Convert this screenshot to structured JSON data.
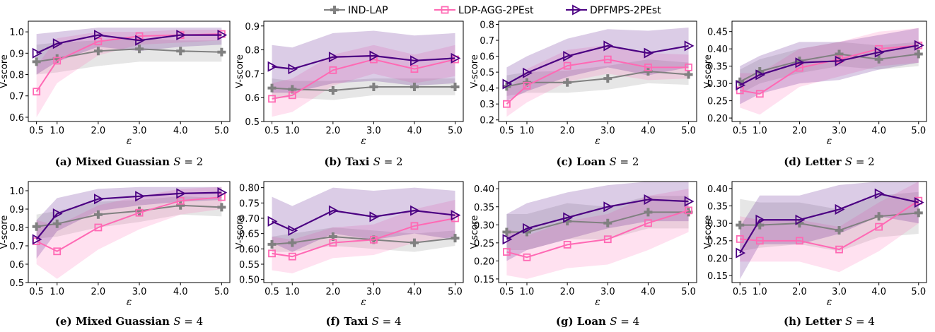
{
  "legend": {
    "entries": [
      {
        "label": "IND-LAP",
        "color": "#808080",
        "marker": "plus"
      },
      {
        "label": "LDP-AGG-2PEst",
        "color": "#ff69b4",
        "marker": "square"
      },
      {
        "label": "DPFMPS-2PEst",
        "color": "#4b0082",
        "marker": "triangle-right"
      }
    ]
  },
  "chart_data": [
    {
      "type": "line",
      "caption": {
        "tag": "(a) Mixed Guassian",
        "var": "S",
        "rest": " = 2"
      },
      "xlabel": "ε",
      "ylabel": "V-score",
      "x": [
        0.5,
        1.0,
        2.0,
        3.0,
        4.0,
        5.0
      ],
      "x_ticks": [
        "0.5",
        "1.0",
        "2.0",
        "3.0",
        "4.0",
        "5.0"
      ],
      "ylim": [
        0.58,
        1.05
      ],
      "y_ticks": [
        "0.6",
        "0.7",
        "0.8",
        "0.9",
        "1.0"
      ],
      "series": [
        {
          "name": "IND-LAP",
          "values": [
            0.86,
            0.875,
            0.91,
            0.92,
            0.91,
            0.905
          ],
          "lower": [
            0.8,
            0.81,
            0.84,
            0.86,
            0.86,
            0.86
          ],
          "upper": [
            0.94,
            0.95,
            0.96,
            0.97,
            0.96,
            0.96
          ]
        },
        {
          "name": "LDP-AGG-2PEst",
          "values": [
            0.72,
            0.865,
            0.955,
            0.98,
            0.985,
            0.99
          ],
          "lower": [
            0.6,
            0.76,
            0.89,
            0.94,
            0.95,
            0.96
          ],
          "upper": [
            0.84,
            0.97,
            1.0,
            1.0,
            1.01,
            1.01
          ]
        },
        {
          "name": "DPFMPS-2PEst",
          "values": [
            0.9,
            0.945,
            0.985,
            0.96,
            0.985,
            0.985
          ],
          "lower": [
            0.8,
            0.86,
            0.93,
            0.91,
            0.93,
            0.94
          ],
          "upper": [
            0.99,
            1.0,
            1.02,
            1.02,
            1.02,
            1.02
          ]
        }
      ]
    },
    {
      "type": "line",
      "caption": {
        "tag": "(b) Taxi",
        "var": "S",
        "rest": " = 2"
      },
      "xlabel": "ε",
      "ylabel": "V-score",
      "x": [
        0.5,
        1.0,
        2.0,
        3.0,
        4.0,
        5.0
      ],
      "x_ticks": [
        "0.5",
        "1.0",
        "2.0",
        "3.0",
        "4.0",
        "5.0"
      ],
      "ylim": [
        0.5,
        0.92
      ],
      "y_ticks": [
        "0.5",
        "0.6",
        "0.7",
        "0.8",
        "0.9"
      ],
      "series": [
        {
          "name": "IND-LAP",
          "values": [
            0.64,
            0.635,
            0.63,
            0.645,
            0.645,
            0.645
          ],
          "lower": [
            0.6,
            0.6,
            0.59,
            0.61,
            0.61,
            0.61
          ],
          "upper": [
            0.68,
            0.67,
            0.67,
            0.68,
            0.68,
            0.68
          ]
        },
        {
          "name": "LDP-AGG-2PEst",
          "values": [
            0.595,
            0.61,
            0.715,
            0.76,
            0.72,
            0.76
          ],
          "lower": [
            0.52,
            0.54,
            0.65,
            0.7,
            0.66,
            0.69
          ],
          "upper": [
            0.66,
            0.68,
            0.78,
            0.82,
            0.78,
            0.82
          ]
        },
        {
          "name": "DPFMPS-2PEst",
          "values": [
            0.73,
            0.72,
            0.77,
            0.775,
            0.755,
            0.765
          ],
          "lower": [
            0.62,
            0.62,
            0.66,
            0.67,
            0.65,
            0.66
          ],
          "upper": [
            0.82,
            0.81,
            0.87,
            0.88,
            0.86,
            0.87
          ]
        }
      ]
    },
    {
      "type": "line",
      "caption": {
        "tag": "(c) Loan",
        "var": "S",
        "rest": " = 2"
      },
      "xlabel": "ε",
      "ylabel": "V-score",
      "x": [
        0.5,
        1.0,
        2.0,
        3.0,
        4.0,
        5.0
      ],
      "x_ticks": [
        "0.5",
        "1.0",
        "2.0",
        "3.0",
        "4.0",
        "5.0"
      ],
      "ylim": [
        0.19,
        0.82
      ],
      "y_ticks": [
        "0.2",
        "0.3",
        "0.4",
        "0.5",
        "0.6",
        "0.7",
        "0.8"
      ],
      "series": [
        {
          "name": "IND-LAP",
          "values": [
            0.41,
            0.435,
            0.435,
            0.46,
            0.505,
            0.485
          ],
          "lower": [
            0.35,
            0.37,
            0.37,
            0.39,
            0.43,
            0.42
          ],
          "upper": [
            0.48,
            0.5,
            0.51,
            0.54,
            0.58,
            0.56
          ]
        },
        {
          "name": "LDP-AGG-2PEst",
          "values": [
            0.3,
            0.415,
            0.54,
            0.58,
            0.53,
            0.53
          ],
          "lower": [
            0.22,
            0.31,
            0.44,
            0.49,
            0.45,
            0.46
          ],
          "upper": [
            0.38,
            0.52,
            0.64,
            0.67,
            0.62,
            0.61
          ]
        },
        {
          "name": "DPFMPS-2PEst",
          "values": [
            0.425,
            0.495,
            0.6,
            0.665,
            0.62,
            0.665
          ],
          "lower": [
            0.32,
            0.38,
            0.47,
            0.53,
            0.48,
            0.53
          ],
          "upper": [
            0.53,
            0.6,
            0.71,
            0.77,
            0.76,
            0.78
          ]
        }
      ]
    },
    {
      "type": "line",
      "caption": {
        "tag": "(d) Letter",
        "var": "S",
        "rest": " = 2"
      },
      "xlabel": "ε",
      "ylabel": "V-score",
      "x": [
        0.5,
        1.0,
        2.0,
        3.0,
        4.0,
        5.0
      ],
      "x_ticks": [
        "0.5",
        "1.0",
        "2.0",
        "3.0",
        "4.0",
        "5.0"
      ],
      "ylim": [
        0.19,
        0.48
      ],
      "y_ticks": [
        "0.20",
        "0.25",
        "0.30",
        "0.35",
        "0.40",
        "0.45"
      ],
      "series": [
        {
          "name": "IND-LAP",
          "values": [
            0.305,
            0.335,
            0.365,
            0.385,
            0.37,
            0.385
          ],
          "lower": [
            0.27,
            0.3,
            0.33,
            0.35,
            0.34,
            0.35
          ],
          "upper": [
            0.34,
            0.37,
            0.4,
            0.42,
            0.41,
            0.42
          ]
        },
        {
          "name": "LDP-AGG-2PEst",
          "values": [
            0.28,
            0.27,
            0.345,
            0.37,
            0.4,
            0.41
          ],
          "lower": [
            0.23,
            0.21,
            0.29,
            0.32,
            0.35,
            0.36
          ],
          "upper": [
            0.33,
            0.33,
            0.4,
            0.42,
            0.45,
            0.46
          ]
        },
        {
          "name": "DPFMPS-2PEst",
          "values": [
            0.295,
            0.325,
            0.36,
            0.365,
            0.39,
            0.41
          ],
          "lower": [
            0.24,
            0.27,
            0.3,
            0.31,
            0.34,
            0.36
          ],
          "upper": [
            0.35,
            0.38,
            0.42,
            0.42,
            0.44,
            0.46
          ]
        }
      ]
    },
    {
      "type": "line",
      "caption": {
        "tag": "(e) Mixed Guassian",
        "var": "S",
        "rest": " = 4"
      },
      "xlabel": "ε",
      "ylabel": "V-score",
      "x": [
        0.5,
        1.0,
        2.0,
        3.0,
        4.0,
        5.0
      ],
      "x_ticks": [
        "0.5",
        "1.0",
        "2.0",
        "3.0",
        "4.0",
        "5.0"
      ],
      "ylim": [
        0.5,
        1.05
      ],
      "y_ticks": [
        "0.5",
        "0.6",
        "0.7",
        "0.8",
        "0.9",
        "1.0"
      ],
      "series": [
        {
          "name": "IND-LAP",
          "values": [
            0.805,
            0.82,
            0.87,
            0.89,
            0.92,
            0.91
          ],
          "lower": [
            0.74,
            0.75,
            0.8,
            0.83,
            0.87,
            0.86
          ],
          "upper": [
            0.87,
            0.89,
            0.94,
            0.95,
            0.97,
            0.96
          ]
        },
        {
          "name": "LDP-AGG-2PEst",
          "values": [
            0.725,
            0.67,
            0.8,
            0.88,
            0.945,
            0.965
          ],
          "lower": [
            0.6,
            0.52,
            0.68,
            0.79,
            0.87,
            0.9
          ],
          "upper": [
            0.84,
            0.81,
            0.92,
            0.97,
            1.01,
            1.02
          ]
        },
        {
          "name": "DPFMPS-2PEst",
          "values": [
            0.735,
            0.875,
            0.955,
            0.97,
            0.985,
            0.99
          ],
          "lower": [
            0.63,
            0.78,
            0.89,
            0.92,
            0.94,
            0.95
          ],
          "upper": [
            0.84,
            0.96,
            1.01,
            1.02,
            1.02,
            1.02
          ]
        }
      ]
    },
    {
      "type": "line",
      "caption": {
        "tag": "(f) Taxi",
        "var": "S",
        "rest": " = 4"
      },
      "xlabel": "ε",
      "ylabel": "V-score",
      "x": [
        0.5,
        1.0,
        2.0,
        3.0,
        4.0,
        5.0
      ],
      "x_ticks": [
        "0.5",
        "1.0",
        "2.0",
        "3.0",
        "4.0",
        "5.0"
      ],
      "ylim": [
        0.49,
        0.82
      ],
      "y_ticks": [
        "0.50",
        "0.55",
        "0.60",
        "0.65",
        "0.70",
        "0.75",
        "0.80"
      ],
      "series": [
        {
          "name": "IND-LAP",
          "values": [
            0.615,
            0.62,
            0.64,
            0.63,
            0.62,
            0.635
          ],
          "lower": [
            0.59,
            0.59,
            0.61,
            0.6,
            0.59,
            0.61
          ],
          "upper": [
            0.64,
            0.65,
            0.67,
            0.66,
            0.65,
            0.66
          ]
        },
        {
          "name": "LDP-AGG-2PEst",
          "values": [
            0.585,
            0.575,
            0.62,
            0.63,
            0.675,
            0.7
          ],
          "lower": [
            0.53,
            0.52,
            0.57,
            0.58,
            0.62,
            0.64
          ],
          "upper": [
            0.64,
            0.63,
            0.67,
            0.68,
            0.73,
            0.76
          ]
        },
        {
          "name": "DPFMPS-2PEst",
          "values": [
            0.69,
            0.66,
            0.725,
            0.705,
            0.725,
            0.71
          ],
          "lower": [
            0.62,
            0.59,
            0.65,
            0.63,
            0.65,
            0.63
          ],
          "upper": [
            0.77,
            0.74,
            0.8,
            0.79,
            0.8,
            0.79
          ]
        }
      ]
    },
    {
      "type": "line",
      "caption": {
        "tag": "(g) Loan",
        "var": "S",
        "rest": " = 4"
      },
      "xlabel": "ε",
      "ylabel": "V-score",
      "x": [
        0.5,
        1.0,
        2.0,
        3.0,
        4.0,
        5.0
      ],
      "x_ticks": [
        "0.5",
        "1.0",
        "2.0",
        "3.0",
        "4.0",
        "5.0"
      ],
      "ylim": [
        0.14,
        0.42
      ],
      "y_ticks": [
        "0.15",
        "0.20",
        "0.25",
        "0.30",
        "0.35",
        "0.40"
      ],
      "series": [
        {
          "name": "IND-LAP",
          "values": [
            0.28,
            0.28,
            0.31,
            0.305,
            0.335,
            0.335
          ],
          "lower": [
            0.23,
            0.23,
            0.26,
            0.26,
            0.29,
            0.29
          ],
          "upper": [
            0.33,
            0.33,
            0.36,
            0.35,
            0.38,
            0.38
          ]
        },
        {
          "name": "LDP-AGG-2PEst",
          "values": [
            0.225,
            0.21,
            0.245,
            0.26,
            0.305,
            0.34
          ],
          "lower": [
            0.16,
            0.15,
            0.18,
            0.19,
            0.23,
            0.28
          ],
          "upper": [
            0.29,
            0.27,
            0.31,
            0.33,
            0.38,
            0.4
          ]
        },
        {
          "name": "DPFMPS-2PEst",
          "values": [
            0.26,
            0.29,
            0.32,
            0.35,
            0.37,
            0.365
          ],
          "lower": [
            0.2,
            0.23,
            0.26,
            0.29,
            0.31,
            0.31
          ],
          "upper": [
            0.33,
            0.36,
            0.39,
            0.41,
            0.42,
            0.42
          ]
        }
      ]
    },
    {
      "type": "line",
      "caption": {
        "tag": "(h) Letter",
        "var": "S",
        "rest": " = 4"
      },
      "xlabel": "ε",
      "ylabel": "V-score",
      "x": [
        0.5,
        1.0,
        2.0,
        3.0,
        4.0,
        5.0
      ],
      "x_ticks": [
        "0.5",
        "1.0",
        "2.0",
        "3.0",
        "4.0",
        "5.0"
      ],
      "ylim": [
        0.13,
        0.42
      ],
      "y_ticks": [
        "0.15",
        "0.20",
        "0.25",
        "0.30",
        "0.35",
        "0.40"
      ],
      "series": [
        {
          "name": "IND-LAP",
          "values": [
            0.295,
            0.295,
            0.3,
            0.28,
            0.32,
            0.33
          ],
          "lower": [
            0.22,
            0.23,
            0.24,
            0.22,
            0.26,
            0.27
          ],
          "upper": [
            0.37,
            0.36,
            0.36,
            0.34,
            0.38,
            0.39
          ]
        },
        {
          "name": "LDP-AGG-2PEst",
          "values": [
            0.255,
            0.25,
            0.25,
            0.225,
            0.29,
            0.365
          ],
          "lower": [
            0.19,
            0.19,
            0.19,
            0.16,
            0.22,
            0.3
          ],
          "upper": [
            0.32,
            0.31,
            0.31,
            0.29,
            0.36,
            0.42
          ]
        },
        {
          "name": "DPFMPS-2PEst",
          "values": [
            0.215,
            0.31,
            0.31,
            0.34,
            0.385,
            0.36
          ],
          "lower": [
            0.14,
            0.24,
            0.24,
            0.27,
            0.32,
            0.3
          ],
          "upper": [
            0.29,
            0.38,
            0.38,
            0.41,
            0.42,
            0.42
          ]
        }
      ]
    }
  ]
}
